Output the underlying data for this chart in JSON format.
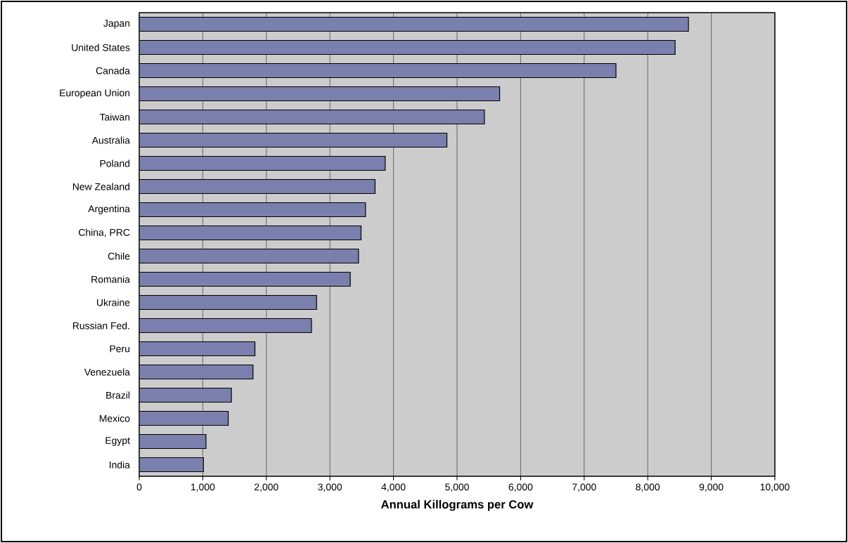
{
  "chart_data": {
    "type": "bar",
    "orientation": "horizontal",
    "xlabel": "Annual Killograms per Cow",
    "categories": [
      "Japan",
      "United States",
      "Canada",
      "European Union",
      "Taiwan",
      "Australia",
      "Poland",
      "New Zealand",
      "Argentina",
      "China, PRC",
      "Chile",
      "Romania",
      "Ukraine",
      "Russian Fed.",
      "Peru",
      "Venezuela",
      "Brazil",
      "Mexico",
      "Egypt",
      "India"
    ],
    "values": [
      8640,
      8430,
      7500,
      5670,
      5430,
      4840,
      3870,
      3710,
      3560,
      3490,
      3450,
      3320,
      2790,
      2710,
      1820,
      1790,
      1450,
      1400,
      1050,
      1010
    ],
    "color": "#7b7fad",
    "xlim": [
      0,
      10000
    ],
    "xticks": [
      0,
      {
        "value": 1000,
        "label": "1,000"
      },
      {
        "value": 2000,
        "label": "2,000"
      },
      {
        "value": 3000,
        "label": "3,000"
      },
      {
        "value": 4000,
        "label": "4,000"
      },
      {
        "value": 5000,
        "label": "5,000"
      },
      {
        "value": 6000,
        "label": "6,000"
      },
      {
        "value": 7000,
        "label": "7,000"
      },
      {
        "value": 8000,
        "label": "8,000"
      },
      {
        "value": 9000,
        "label": "9,000"
      },
      {
        "value": 10000,
        "label": "10,000"
      }
    ],
    "grid": "x"
  }
}
